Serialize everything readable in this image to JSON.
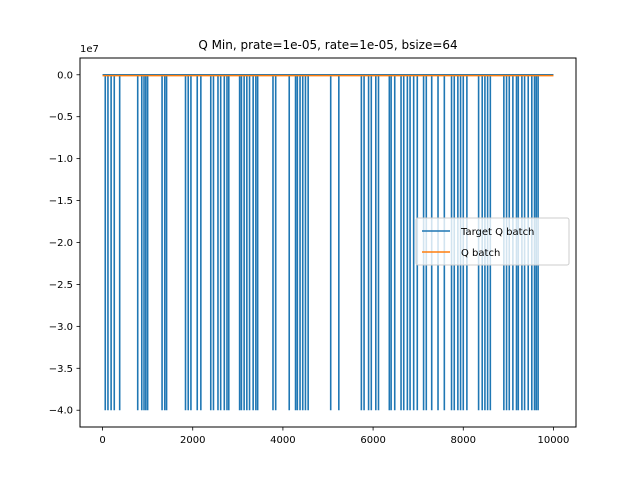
{
  "chart_data": {
    "type": "line",
    "title": "Q Min, prate=1e-05, rate=1e-05, bsize=64",
    "xlabel": "",
    "ylabel": "",
    "y_offset_label": "1e7",
    "xlim": [
      -500,
      10500
    ],
    "ylim": [
      -4.2,
      0.2
    ],
    "x_ticks": [
      0,
      2000,
      4000,
      6000,
      8000,
      10000
    ],
    "x_tick_labels": [
      "0",
      "2000",
      "4000",
      "6000",
      "8000",
      "10000"
    ],
    "y_ticks": [
      0.0,
      -0.5,
      -1.0,
      -1.5,
      -2.0,
      -2.5,
      -3.0,
      -3.5,
      -4.0
    ],
    "y_tick_labels": [
      "0.0",
      "−0.5",
      "−1.0",
      "−1.5",
      "−2.0",
      "−2.5",
      "−3.0",
      "−3.5",
      "−4.0"
    ],
    "grid": false,
    "legend_position": "center-right",
    "series": [
      {
        "name": "Target Q batch",
        "color": "#1f77b4",
        "baseline": 0.0,
        "spike_value": -4.0,
        "spike_x": [
          60,
          120,
          190,
          260,
          380,
          780,
          870,
          920,
          960,
          1000,
          1320,
          1380,
          1420,
          1840,
          1900,
          1960,
          2100,
          2180,
          2400,
          2460,
          2560,
          2620,
          2700,
          2760,
          2800,
          3040,
          3080,
          3140,
          3200,
          3260,
          3340,
          3400,
          3440,
          3780,
          3840,
          4140,
          4280,
          4320,
          4380,
          4440,
          4500,
          4560,
          5060,
          5240,
          5740,
          5800,
          5900,
          5960,
          6060,
          6120,
          6360,
          6400,
          6480,
          6620,
          6680,
          6760,
          6820,
          6900,
          6980,
          7120,
          7180,
          7300,
          7440,
          7580,
          7740,
          7800,
          7880,
          7940,
          8000,
          8080,
          8340,
          8420,
          8480,
          8540,
          8600,
          8900,
          8960,
          9020,
          9100,
          9180,
          9220,
          9300,
          9360,
          9440,
          9520,
          9580,
          9620,
          9660
        ]
      },
      {
        "name": "Q batch",
        "color": "#ff7f0e",
        "points": [
          [
            0,
            -0.01
          ],
          [
            2000,
            -0.01
          ],
          [
            4000,
            -0.01
          ],
          [
            6000,
            -0.01
          ],
          [
            8000,
            -0.01
          ],
          [
            10000,
            -0.01
          ]
        ]
      }
    ]
  }
}
